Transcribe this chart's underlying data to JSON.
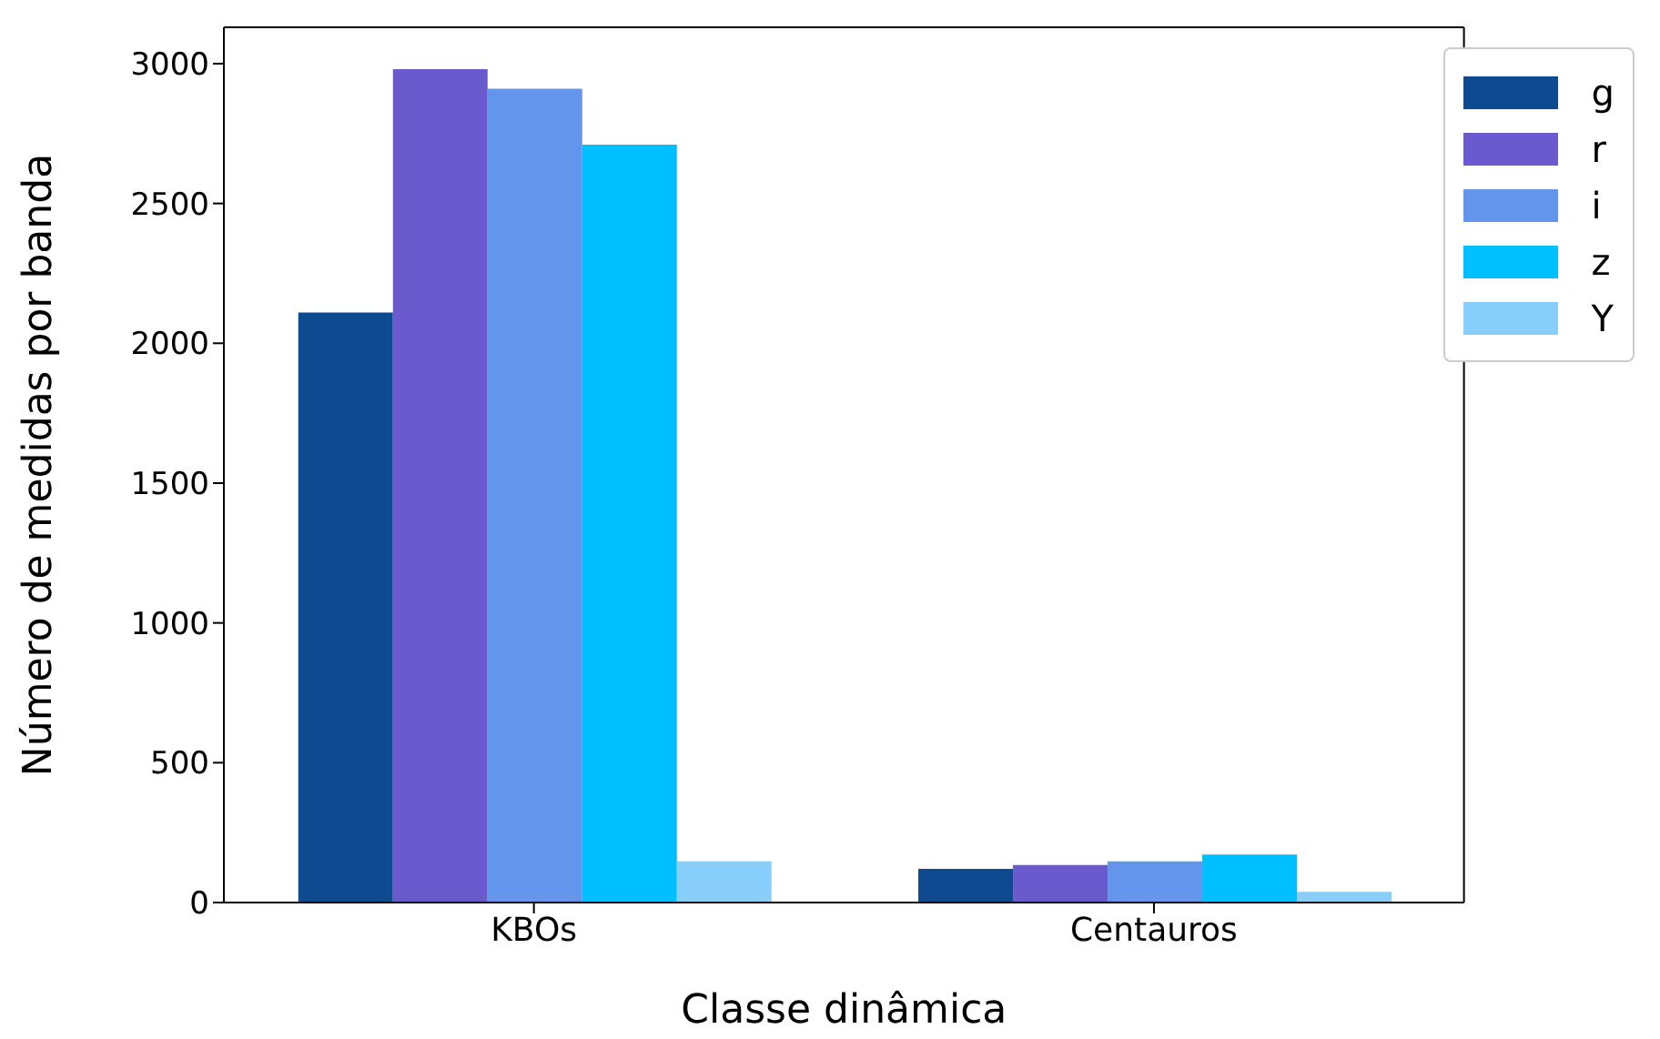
{
  "chart_data": {
    "type": "bar",
    "xlabel": "Classe dinâmica",
    "ylabel": "Número de medidas por banda",
    "categories": [
      "KBOs",
      "Centauros"
    ],
    "series": [
      {
        "name": "g",
        "color": "#0d4a8f",
        "values": [
          2110,
          120
        ]
      },
      {
        "name": "r",
        "color": "#6a5acd",
        "values": [
          2980,
          134
        ]
      },
      {
        "name": "i",
        "color": "#6495ed",
        "values": [
          2910,
          147
        ]
      },
      {
        "name": "z",
        "color": "#00bfff",
        "values": [
          2710,
          172
        ]
      },
      {
        "name": "Y",
        "color": "#87cefa",
        "values": [
          147,
          38
        ]
      }
    ],
    "ylim": [
      0,
      3130
    ],
    "yticks": [
      0,
      500,
      1000,
      1500,
      2000,
      2500,
      3000
    ],
    "grid": false,
    "legend": "top right"
  }
}
